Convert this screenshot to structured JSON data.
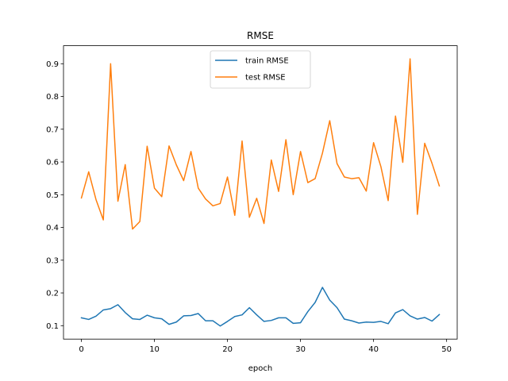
{
  "chart_data": {
    "type": "line",
    "title": "RMSE",
    "xlabel": "epoch",
    "ylabel": "",
    "xlim": [
      -2.45,
      51.45
    ],
    "ylim": [
      0.059,
      0.955
    ],
    "xticks": [
      0,
      10,
      20,
      30,
      40,
      50
    ],
    "yticks": [
      0.1,
      0.2,
      0.3,
      0.4,
      0.5,
      0.6,
      0.7,
      0.8,
      0.9
    ],
    "grid": false,
    "legend_position": "upper center",
    "x": [
      0,
      1,
      2,
      3,
      4,
      5,
      6,
      7,
      8,
      9,
      10,
      11,
      12,
      13,
      14,
      15,
      16,
      17,
      18,
      19,
      20,
      21,
      22,
      23,
      24,
      25,
      26,
      27,
      28,
      29,
      30,
      31,
      32,
      33,
      34,
      35,
      36,
      37,
      38,
      39,
      40,
      41,
      42,
      43,
      44,
      45,
      46,
      47,
      48,
      49
    ],
    "series": [
      {
        "name": "train RMSE",
        "color": "#1f77b4",
        "values": [
          0.124,
          0.119,
          0.129,
          0.148,
          0.152,
          0.164,
          0.14,
          0.121,
          0.119,
          0.132,
          0.124,
          0.121,
          0.104,
          0.111,
          0.13,
          0.131,
          0.137,
          0.115,
          0.115,
          0.099,
          0.113,
          0.128,
          0.133,
          0.155,
          0.133,
          0.113,
          0.116,
          0.124,
          0.124,
          0.107,
          0.109,
          0.143,
          0.171,
          0.217,
          0.178,
          0.155,
          0.12,
          0.115,
          0.108,
          0.111,
          0.11,
          0.113,
          0.106,
          0.139,
          0.149,
          0.13,
          0.12,
          0.125,
          0.114,
          0.134
        ]
      },
      {
        "name": "test RMSE",
        "color": "#ff7f0e",
        "values": [
          0.49,
          0.57,
          0.485,
          0.423,
          0.9,
          0.48,
          0.592,
          0.395,
          0.418,
          0.648,
          0.52,
          0.494,
          0.649,
          0.591,
          0.543,
          0.632,
          0.52,
          0.487,
          0.466,
          0.473,
          0.554,
          0.437,
          0.664,
          0.431,
          0.489,
          0.412,
          0.606,
          0.51,
          0.668,
          0.5,
          0.632,
          0.537,
          0.549,
          0.627,
          0.726,
          0.595,
          0.554,
          0.549,
          0.552,
          0.511,
          0.659,
          0.586,
          0.482,
          0.74,
          0.599,
          0.915,
          0.44,
          0.657,
          0.596,
          0.527
        ]
      }
    ]
  }
}
